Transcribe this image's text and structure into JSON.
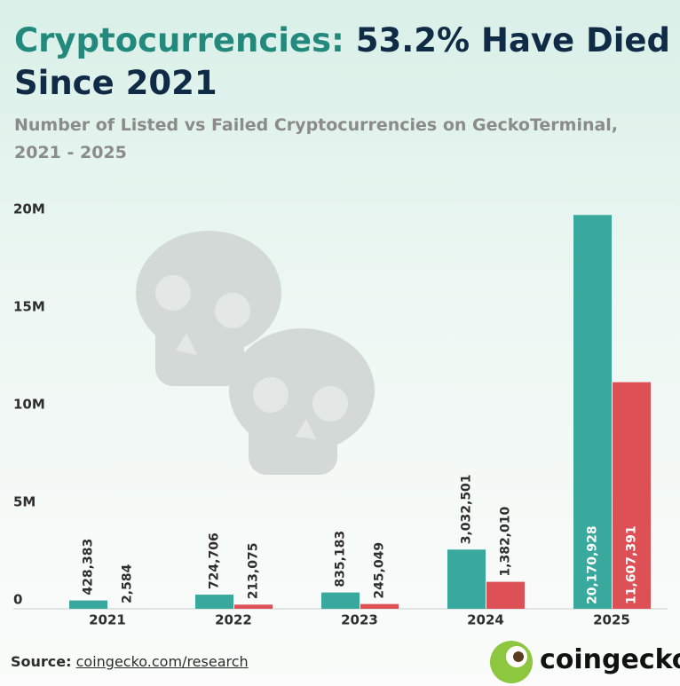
{
  "chart_data": {
    "type": "bar",
    "title_lead": "Cryptocurrencies:",
    "title": "53.2% Have Died Since 2021",
    "subtitle": "Number of Listed vs Failed Cryptocurrencies on GeckoTerminal, 2021 - 2025",
    "categories": [
      "2021",
      "2022",
      "2023",
      "2024",
      "2025"
    ],
    "series": [
      {
        "color": "#38a99c",
        "values": [
          428383,
          724706,
          835183,
          3032501,
          20170928
        ],
        "value_labels": [
          "428,383",
          "724,706",
          "835,183",
          "3,032,501",
          "20,170,928"
        ]
      },
      {
        "color": "#dd5156",
        "values": [
          2584,
          213075,
          245049,
          1382010,
          11607391
        ],
        "value_labels": [
          "2,584",
          "213,075",
          "245,049",
          "1,382,010",
          "11,607,391"
        ]
      }
    ],
    "ylim": [
      0,
      20000000
    ],
    "yticks": [
      0,
      {
        "value": 5000000,
        "label": "5M"
      },
      {
        "value": 10000000,
        "label": "10M"
      },
      {
        "value": 15000000,
        "label": "15M"
      },
      {
        "value": 20000000,
        "label": "20M"
      }
    ],
    "grid": false
  },
  "footer": {
    "source_label": "Source:",
    "source_url": "coingecko.com/research",
    "brand": "coingecko"
  }
}
